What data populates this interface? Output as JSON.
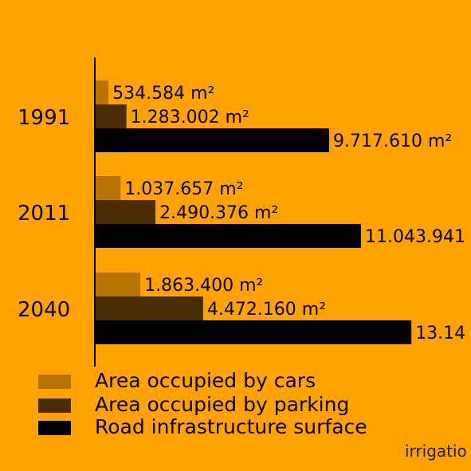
{
  "chart_data": {
    "type": "bar",
    "orientation": "horizontal",
    "categories": [
      "1991",
      "2011",
      "2040"
    ],
    "series": [
      {
        "name": "Area occupied by cars",
        "color": "#B87300",
        "values": [
          534584,
          1037657,
          1863400
        ],
        "labels": [
          "534.584 m²",
          "1.037.657 m²",
          "1.863.400 m²"
        ]
      },
      {
        "name": "Area occupied by parking",
        "color": "#4A2D00",
        "values": [
          1283002,
          2490376,
          4472160
        ],
        "labels": [
          "1.283.002 m²",
          "2.490.376 m²",
          "4.472.160 m²"
        ]
      },
      {
        "name": "Road infrastructure surface",
        "color": "#000000",
        "values": [
          9717610,
          11043941,
          13140000
        ],
        "labels": [
          "9.717.610 m²",
          "11.043.941",
          "13.14"
        ]
      }
    ],
    "legend_position": "bottom-left",
    "grid": false
  },
  "credit": "irrigatio"
}
